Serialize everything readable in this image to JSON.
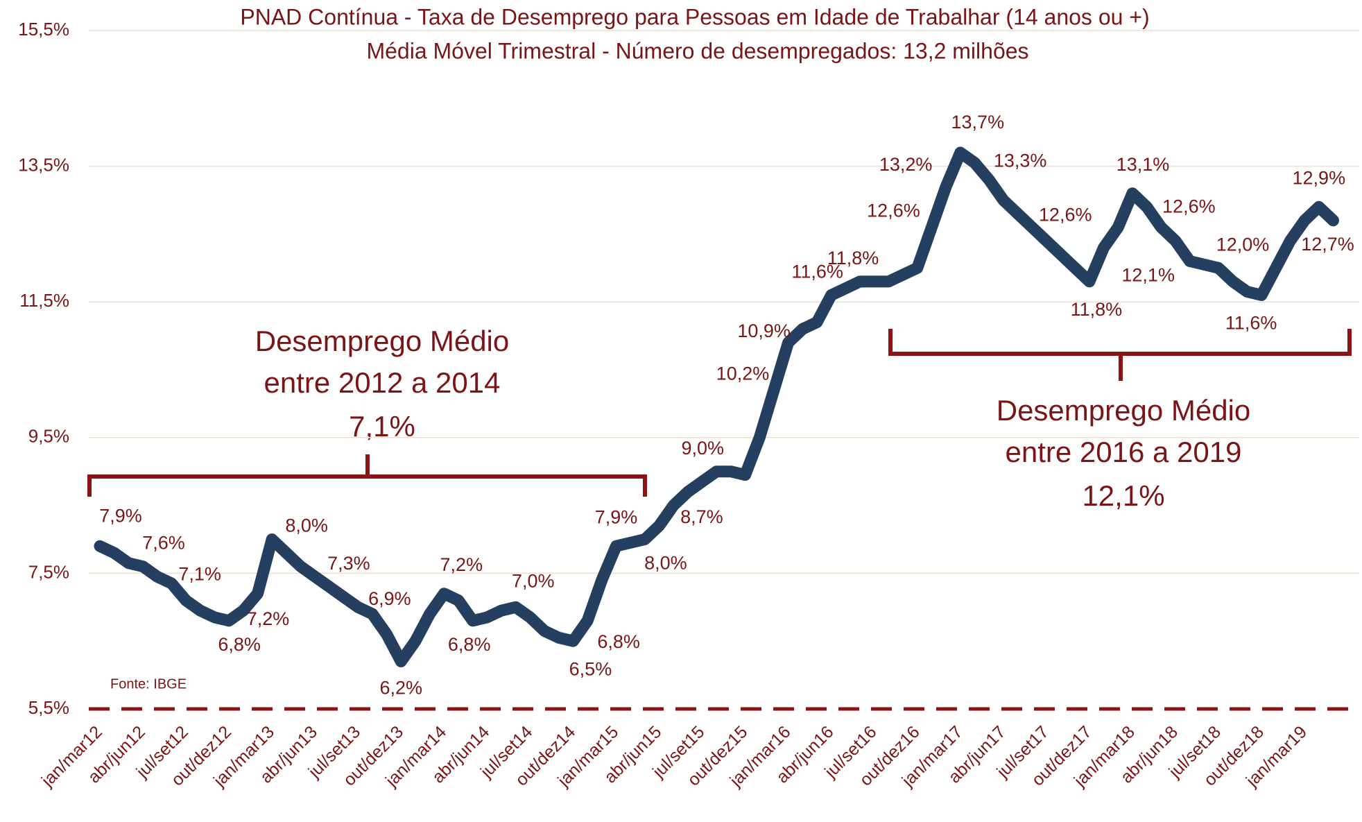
{
  "chart_data": {
    "type": "line",
    "title": "PNAD Contínua - Taxa de Desemprego para Pessoas em Idade de Trabalhar (14 anos ou +)",
    "subtitle": "Média Móvel Trimestral - Número de desempregados: 13,2 milhões",
    "source": "Fonte: IBGE",
    "annotations": [
      {
        "lines": [
          "Desemprego Médio",
          "entre 2012 a 2014",
          "7,1%"
        ]
      },
      {
        "lines": [
          "Desemprego Médio",
          "entre 2016 a 2019",
          "12,1%"
        ]
      }
    ],
    "color": "#243f60",
    "grid": true,
    "ylim": [
      5.5,
      15.5
    ],
    "yticks": [
      {
        "value": 5.5,
        "label": "5,5%"
      },
      {
        "value": 7.5,
        "label": "7,5%"
      },
      {
        "value": 9.5,
        "label": "9,5%"
      },
      {
        "value": 11.5,
        "label": "11,5%"
      },
      {
        "value": 13.5,
        "label": "13,5%"
      },
      {
        "value": 15.5,
        "label": "15,5%"
      }
    ],
    "categories": [
      "jan/mar12",
      null,
      null,
      "abr/jun12",
      null,
      null,
      "jul/set12",
      null,
      null,
      "out/dez12",
      null,
      null,
      "jan/mar13",
      null,
      null,
      "abr/jun13",
      null,
      null,
      "jul/set13",
      null,
      null,
      "out/dez13",
      null,
      null,
      "jan/mar14",
      null,
      null,
      "abr/jun14",
      null,
      null,
      "jul/set14",
      null,
      null,
      "out/dez14",
      null,
      null,
      "jan/mar15",
      null,
      null,
      "abr/jun15",
      null,
      null,
      "jul/set15",
      null,
      null,
      "out/dez15",
      null,
      null,
      "jan/mar16",
      null,
      null,
      "abr/jun16",
      null,
      null,
      "jul/set16",
      null,
      null,
      "out/dez16",
      null,
      null,
      "jan/mar17",
      null,
      null,
      "abr/jun17",
      null,
      null,
      "jul/set17",
      null,
      null,
      "out/dez17",
      null,
      null,
      "jan/mar18",
      null,
      null,
      "abr/jun18",
      null,
      null,
      "jul/set18",
      null,
      null,
      "out/dez18",
      null,
      null,
      "jan/mar19",
      null,
      null
    ],
    "values": [
      7.9,
      7.8,
      7.65,
      7.6,
      7.45,
      7.35,
      7.1,
      6.95,
      6.85,
      6.8,
      6.95,
      7.2,
      8.0,
      7.8,
      7.6,
      7.45,
      7.3,
      7.15,
      7.0,
      6.9,
      6.6,
      6.2,
      6.5,
      6.9,
      7.2,
      7.1,
      6.8,
      6.85,
      6.95,
      7.0,
      6.85,
      6.65,
      6.55,
      6.5,
      6.8,
      7.4,
      7.9,
      7.95,
      8.0,
      8.2,
      8.5,
      8.7,
      8.85,
      9.0,
      9.0,
      8.95,
      9.5,
      10.2,
      10.9,
      11.1,
      11.2,
      11.6,
      11.7,
      11.8,
      11.8,
      11.8,
      11.9,
      12.0,
      12.6,
      13.2,
      13.7,
      13.55,
      13.3,
      13.0,
      12.8,
      12.6,
      12.4,
      12.2,
      12.0,
      11.8,
      12.3,
      12.6,
      13.1,
      12.9,
      12.6,
      12.4,
      12.1,
      12.05,
      12.0,
      11.8,
      11.65,
      11.6,
      12.0,
      12.4,
      12.7,
      12.9,
      12.7
    ],
    "value_labels": [
      "7,9%",
      null,
      null,
      "7,6%",
      null,
      null,
      "7,1%",
      null,
      null,
      "6,8%",
      null,
      "7,2%",
      "8,0%",
      null,
      null,
      null,
      "7,3%",
      null,
      null,
      "6,9%",
      null,
      "6,2%",
      null,
      null,
      "7,2%",
      null,
      "6,8%",
      null,
      null,
      "7,0%",
      null,
      null,
      null,
      "6,5%",
      "6,8%",
      null,
      "7,9%",
      null,
      "8,0%",
      null,
      null,
      "8,7%",
      null,
      "9,0%",
      null,
      null,
      null,
      "10,2%",
      "10,9%",
      null,
      null,
      "11,6%",
      null,
      "11,8%",
      null,
      null,
      null,
      null,
      "12,6%",
      "13,2%",
      "13,7%",
      null,
      "13,3%",
      null,
      null,
      "12,6%",
      null,
      null,
      null,
      "11,8%",
      null,
      null,
      "13,1%",
      null,
      "12,6%",
      null,
      "12,1%",
      null,
      "12,0%",
      null,
      null,
      "11,6%",
      null,
      null,
      null,
      "12,9%",
      "12,7%"
    ]
  }
}
